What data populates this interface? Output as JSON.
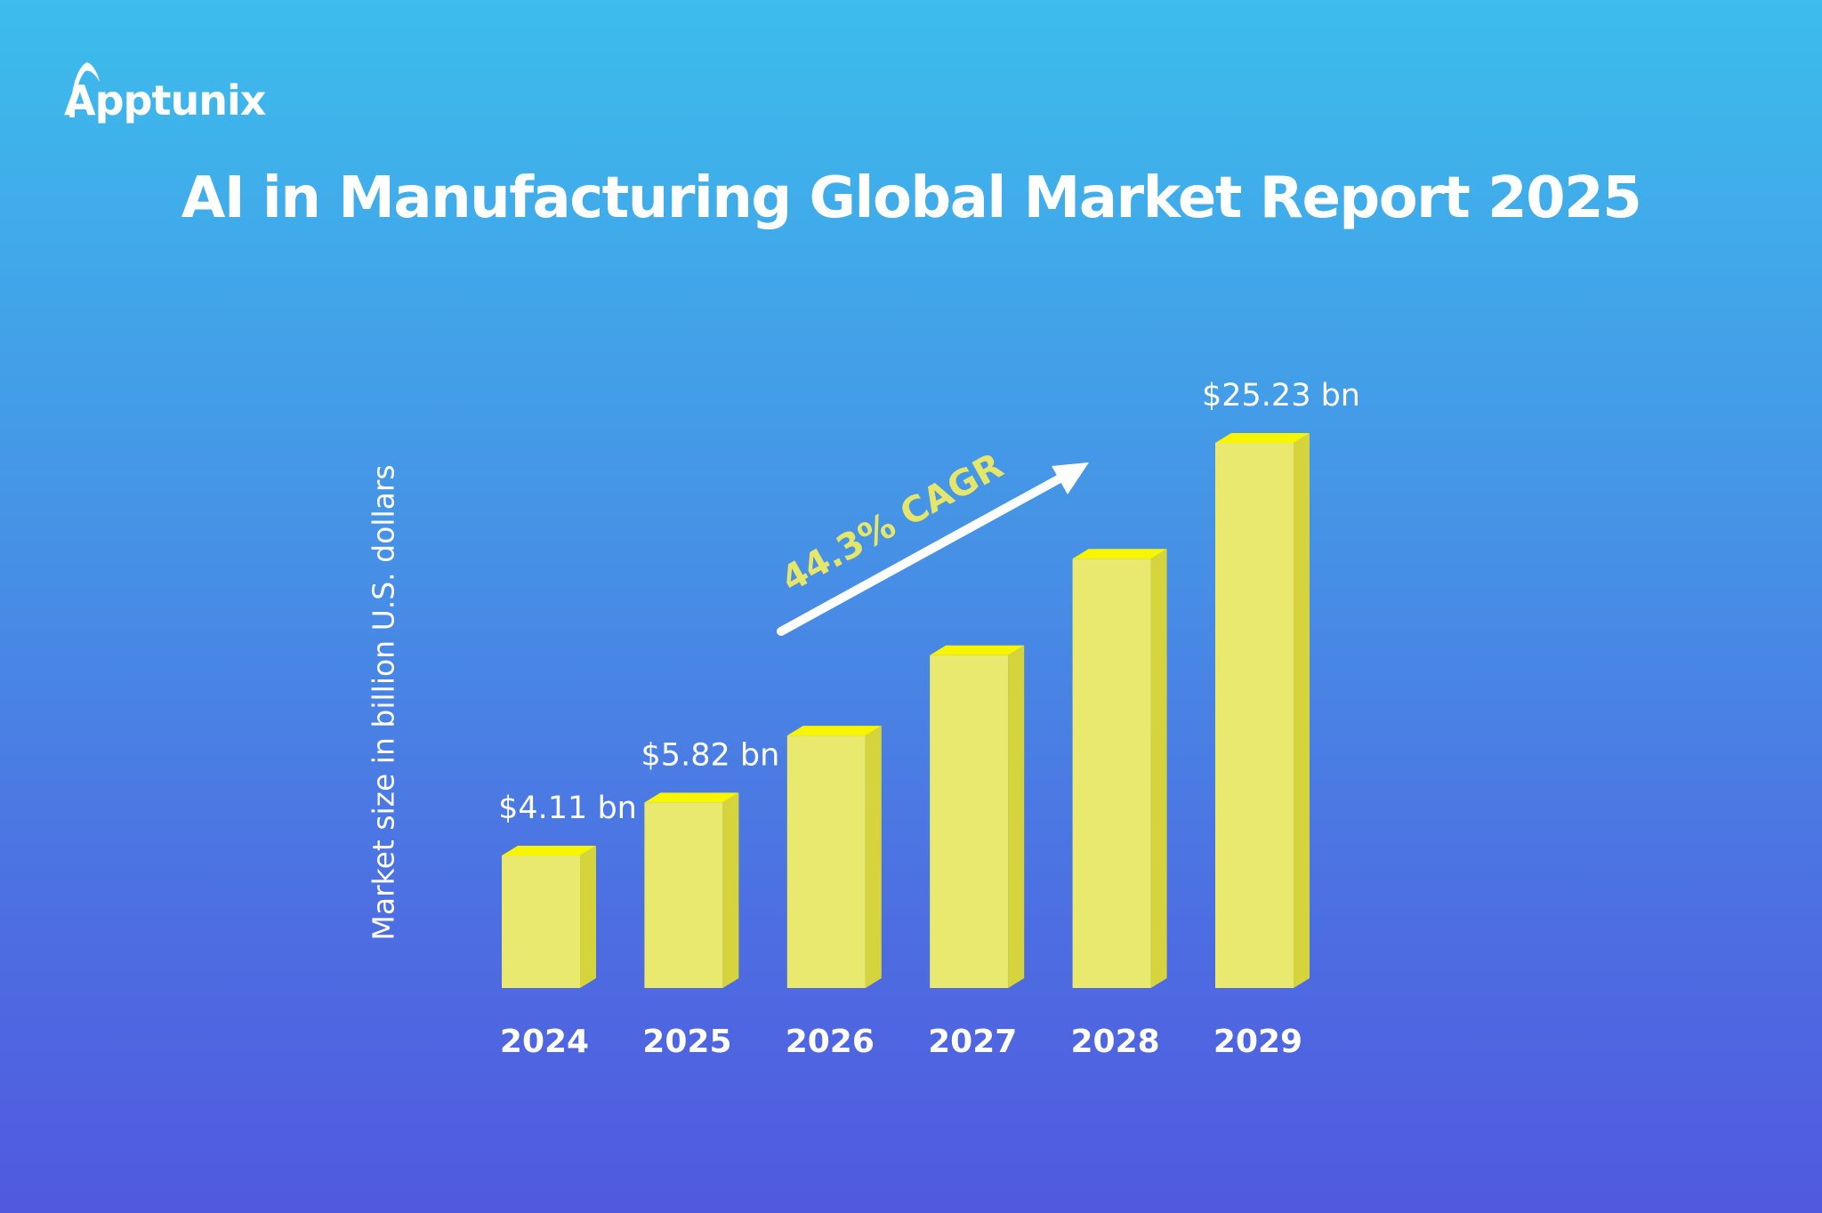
{
  "brand": {
    "name": "Apptunix"
  },
  "chart_data": {
    "type": "bar",
    "title": "AI in Manufacturing Global Market Report 2025",
    "ylabel": "Market size in billion U.S. dollars",
    "xlabel": "",
    "categories": [
      "2024",
      "2025",
      "2026",
      "2027",
      "2028",
      "2029"
    ],
    "values": [
      4.11,
      5.82,
      8.4,
      12.12,
      17.49,
      25.23
    ],
    "data_labels": [
      "$4.11 bn",
      "$5.82 bn",
      "",
      "",
      "",
      "$25.23 bn"
    ],
    "annotation": "44.3% CAGR",
    "grid": false,
    "colors": {
      "bar_front": "#e9e86f",
      "bar_top": "#f8f500",
      "bar_side": "#d5d43c",
      "annotation": "#e6e66a"
    }
  }
}
